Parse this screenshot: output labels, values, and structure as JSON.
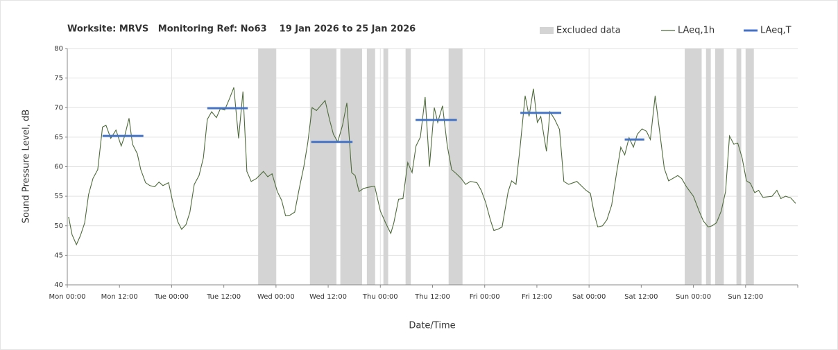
{
  "chart_data": {
    "type": "line",
    "title": "Worksite: MRVS   Monitoring Ref: No63    19 Jan 2026 to 25 Jan 2026",
    "y_label": "Sound Pressure Level, dB",
    "x_label": "Date/Time",
    "xlim": [
      0,
      168
    ],
    "ylim": [
      40,
      80
    ],
    "yticks": [
      40,
      45,
      50,
      55,
      60,
      65,
      70,
      75,
      80
    ],
    "xticks": [
      {
        "value": 0,
        "label": "Mon 00:00"
      },
      {
        "value": 12,
        "label": "Mon 12:00"
      },
      {
        "value": 24,
        "label": "Tue 00:00"
      },
      {
        "value": 36,
        "label": "Tue 12:00"
      },
      {
        "value": 48,
        "label": "Wed 00:00"
      },
      {
        "value": 60,
        "label": "Wed 12:00"
      },
      {
        "value": 72,
        "label": "Thu 00:00"
      },
      {
        "value": 84,
        "label": "Thu 12:00"
      },
      {
        "value": 96,
        "label": "Fri 00:00"
      },
      {
        "value": 108,
        "label": "Fri 12:00"
      },
      {
        "value": 120,
        "label": "Sat 00:00"
      },
      {
        "value": 132,
        "label": "Sat 12:00"
      },
      {
        "value": 144,
        "label": "Sun 00:00"
      },
      {
        "value": 156,
        "label": "Sun 12:00"
      }
    ],
    "grid": true,
    "legend": "top-right",
    "series": [
      {
        "name": "Excluded data",
        "color": "#d4d4d4",
        "ranges": [
          [
            43.9,
            48.0
          ],
          [
            55.8,
            61.9
          ],
          [
            62.8,
            67.8
          ],
          [
            68.9,
            70.8
          ],
          [
            72.7,
            73.8
          ],
          [
            77.8,
            79.0
          ],
          [
            87.7,
            90.9
          ],
          [
            142.0,
            145.9
          ],
          [
            146.9,
            148.0
          ],
          [
            149.0,
            151.0
          ],
          [
            153.9,
            155.0
          ],
          [
            156.0,
            157.9
          ]
        ]
      },
      {
        "name": "LAeq,1h",
        "color": "#4e6b3a",
        "x": [
          0.3,
          1.1,
          2.1,
          3.0,
          4.0,
          4.9,
          5.9,
          7.0,
          8.1,
          8.9,
          10.0,
          11.2,
          12.4,
          13.2,
          14.2,
          15.0,
          16.1,
          16.9,
          18.0,
          19.0,
          20.1,
          21.1,
          22.0,
          23.3,
          24.4,
          25.4,
          26.3,
          27.3,
          28.2,
          29.2,
          30.3,
          31.3,
          32.2,
          33.2,
          34.3,
          35.2,
          36.2,
          37.3,
          38.3,
          39.4,
          40.4,
          41.3,
          42.3,
          43.5,
          45.1,
          46.1,
          47.1,
          48.3,
          49.3,
          50.2,
          51.2,
          52.3,
          53.4,
          54.4,
          55.3,
          56.3,
          57.3,
          59.3,
          60.3,
          61.2,
          62.2,
          63.3,
          64.3,
          65.4,
          66.2,
          67.1,
          68.1,
          69.1,
          70.7,
          72.0,
          73.2,
          74.4,
          75.1,
          76.2,
          77.2,
          78.3,
          79.3,
          80.2,
          81.2,
          82.3,
          83.3,
          84.4,
          85.2,
          86.3,
          87.4,
          88.4,
          89.5,
          90.6,
          91.6,
          92.7,
          94.2,
          95.2,
          96.2,
          97.3,
          98.1,
          99.0,
          100.0,
          101.4,
          102.2,
          103.2,
          104.1,
          105.3,
          106.2,
          107.2,
          108.1,
          108.9,
          110.2,
          111.0,
          112.1,
          113.2,
          114.2,
          115.3,
          117.2,
          119.3,
          120.3,
          121.2,
          122.0,
          123.1,
          124.1,
          125.2,
          126.3,
          127.3,
          128.2,
          129.2,
          130.2,
          131.1,
          132.2,
          133.2,
          134.1,
          135.2,
          136.4,
          137.3,
          138.3,
          140.4,
          141.3,
          142.4,
          144.0,
          145.3,
          146.3,
          147.4,
          148.3,
          149.3,
          150.4,
          151.4,
          152.3,
          153.3,
          154.2,
          155.2,
          156.2,
          157.1,
          158.1,
          159.0,
          160.0,
          162.1,
          163.2,
          164.1,
          165.2,
          166.4,
          167.5
        ],
        "values": [
          51.5,
          48.5,
          46.8,
          48.3,
          50.5,
          55.3,
          58,
          59.5,
          66.7,
          67,
          64.8,
          66.2,
          63.5,
          65.2,
          68.2,
          63.8,
          62.2,
          59.5,
          57.3,
          56.8,
          56.6,
          57.4,
          56.8,
          57.3,
          53.5,
          50.7,
          49.4,
          50.2,
          52.3,
          57,
          58.5,
          61.5,
          68,
          69.3,
          68.3,
          69.8,
          69.6,
          71.5,
          73.4,
          64.8,
          72.7,
          59.2,
          57.5,
          58,
          59.2,
          58.3,
          58.8,
          55.8,
          54.3,
          51.7,
          51.8,
          52.3,
          56.5,
          60,
          64,
          70,
          69.5,
          71.2,
          68,
          65.5,
          64.2,
          67,
          70.8,
          59,
          58.5,
          55.8,
          56.3,
          56.5,
          56.7,
          52.5,
          50.5,
          48.7,
          50.5,
          54.5,
          54.6,
          60.7,
          59,
          63.5,
          65,
          71.8,
          60,
          70,
          67.5,
          70.3,
          63.5,
          59.5,
          58.8,
          58,
          57,
          57.5,
          57.3,
          56,
          54,
          51,
          49.2,
          49.4,
          49.8,
          55.8,
          57.6,
          57,
          63,
          72,
          68.5,
          73.2,
          67.5,
          68.5,
          62.6,
          69.3,
          68,
          66.3,
          57.5,
          57,
          57.5,
          56,
          55.5,
          52,
          49.8,
          50,
          51,
          53.5,
          58.8,
          63.3,
          62,
          64.9,
          63.3,
          65.5,
          66.4,
          66,
          64.6,
          72,
          65,
          59.7,
          57.6,
          58.5,
          58,
          56.6,
          55,
          52.5,
          50.8,
          49.8,
          50,
          50.5,
          52.5,
          55.8,
          65.2,
          63.8,
          64,
          61.5,
          57.6,
          57.2,
          55.6,
          56,
          54.8,
          55,
          56,
          54.6,
          55,
          54.7,
          53.8
        ]
      },
      {
        "name": "LAeq,T",
        "color": "#4472c4",
        "segments": [
          {
            "x": [
              8.1,
              17.5
            ],
            "value": 65.2
          },
          {
            "x": [
              32.2,
              41.5
            ],
            "value": 69.9
          },
          {
            "x": [
              56.1,
              65.6
            ],
            "value": 64.2
          },
          {
            "x": [
              80.1,
              89.6
            ],
            "value": 67.9
          },
          {
            "x": [
              104.2,
              113.6
            ],
            "value": 69.1
          },
          {
            "x": [
              128.2,
              132.7
            ],
            "value": 64.6
          }
        ]
      }
    ]
  }
}
